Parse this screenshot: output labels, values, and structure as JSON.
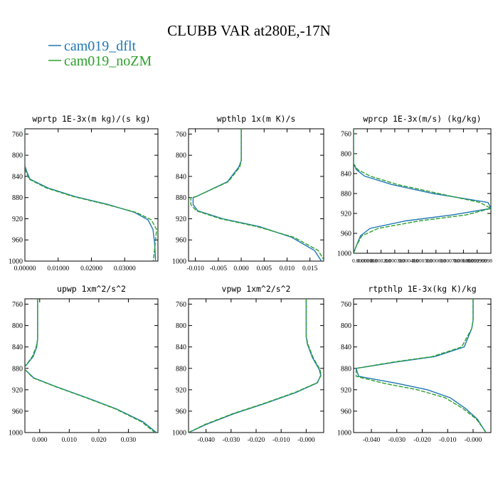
{
  "title": "CLUBB VAR at280E,-17N",
  "legend": {
    "placement": "top-left",
    "entries": [
      {
        "name": "cam019_dflt",
        "color": "#1f77b4"
      },
      {
        "name": "cam019_noZM",
        "color": "#2ca02c"
      }
    ]
  },
  "chart_data": [
    {
      "type": "line",
      "title": "wprtp  1E-3x(m kg)/(s kg)",
      "xlim": [
        0.0,
        0.04
      ],
      "ylim": [
        1000,
        750
      ],
      "xticks": [
        0.0,
        0.01,
        0.02,
        0.03
      ],
      "xtick_labels": [
        "0.00000",
        "0.01000",
        "0.02000",
        "0.03000"
      ],
      "yticks": [
        760,
        800,
        840,
        880,
        920,
        960,
        1000
      ],
      "ytick_labels": [
        "760",
        "800",
        "840",
        "880",
        "920",
        "960",
        "1000"
      ],
      "grid": false,
      "series": [
        {
          "name": "cam019_dflt",
          "x": [
            0.0,
            0.0,
            0.0005,
            0.0015,
            0.007,
            0.015,
            0.025,
            0.033,
            0.037,
            0.0385,
            0.039,
            0.0393
          ],
          "y": [
            750,
            820,
            830,
            845,
            862,
            878,
            893,
            908,
            922,
            940,
            965,
            1000
          ]
        },
        {
          "name": "cam019_noZM",
          "x": [
            0.0,
            0.0,
            0.0003,
            0.0012,
            0.0065,
            0.0145,
            0.0245,
            0.0335,
            0.038,
            0.0396,
            0.0392,
            0.0386
          ],
          "y": [
            750,
            820,
            830,
            845,
            862,
            878,
            893,
            908,
            922,
            940,
            965,
            1000
          ]
        }
      ]
    },
    {
      "type": "line",
      "title": "wpthlp  1x(m K)/s",
      "xlim": [
        -0.0115,
        0.018
      ],
      "ylim": [
        1000,
        750
      ],
      "xticks": [
        -0.01,
        -0.005,
        0.0,
        0.005,
        0.01,
        0.015
      ],
      "xtick_labels": [
        "-0.010",
        "-0.005",
        "0.000",
        "0.005",
        "0.010",
        "0.015"
      ],
      "yticks": [
        760,
        800,
        840,
        880,
        920,
        960,
        1000
      ],
      "ytick_labels": [
        "760",
        "800",
        "840",
        "880",
        "920",
        "960",
        "1000"
      ],
      "grid": false,
      "series": [
        {
          "name": "cam019_dflt",
          "x": [
            0.0,
            0.0,
            -0.0005,
            -0.003,
            -0.0098,
            -0.0105,
            -0.0105,
            -0.0095,
            -0.004,
            0.004,
            0.011,
            0.016,
            0.0175
          ],
          "y": [
            750,
            810,
            822,
            850,
            878,
            880,
            893,
            905,
            920,
            935,
            955,
            980,
            1000
          ]
        },
        {
          "name": "cam019_noZM",
          "x": [
            0.0,
            0.0,
            -0.0003,
            -0.0028,
            -0.0098,
            -0.011,
            -0.011,
            -0.0098,
            -0.0045,
            0.0035,
            0.0115,
            0.0168,
            0.0182
          ],
          "y": [
            750,
            810,
            822,
            850,
            878,
            880,
            893,
            905,
            920,
            935,
            955,
            980,
            1000
          ]
        }
      ]
    },
    {
      "type": "line",
      "title": "wprcp  1E-3x(m/s) (kg/kg)",
      "xlim": [
        0.0,
        0.0009999998
      ],
      "ylim": [
        1000,
        750
      ],
      "xticks": [
        0.0,
        0.0001,
        0.0002,
        0.0003,
        0.0004,
        0.0005,
        0.0006,
        0.0007,
        0.0008,
        0.0009,
        0.0009999998
      ],
      "xtick_labels": [
        "0.000000",
        "0.000100",
        "0.000200",
        "0.000300",
        "0.000400",
        "0.000500",
        "0.000600",
        "0.000700",
        "0.000800",
        "0.000900",
        "0.0009999998"
      ],
      "yticks": [
        760,
        800,
        840,
        880,
        920,
        960,
        1000
      ],
      "ytick_labels": [
        "760",
        "800",
        "840",
        "880",
        "920",
        "960",
        "1000"
      ],
      "grid": false,
      "series": [
        {
          "name": "cam019_dflt",
          "x": [
            0.0,
            0.0,
            2e-05,
            8e-05,
            0.00028,
            0.00058,
            0.00098,
            0.001,
            0.00072,
            0.00038,
            0.00012,
            5e-05,
            2e-05,
            0.0
          ],
          "y": [
            750,
            820,
            832,
            845,
            862,
            880,
            898,
            910,
            923,
            935,
            950,
            965,
            985,
            1000
          ]
        },
        {
          "name": "cam019_noZM",
          "x": [
            0.0,
            0.0,
            3e-05,
            0.00012,
            0.00032,
            0.00062,
            0.00092,
            0.001,
            0.00082,
            0.00048,
            0.00018,
            6e-05,
            2e-05,
            0.0
          ],
          "y": [
            750,
            820,
            832,
            845,
            862,
            880,
            898,
            910,
            923,
            935,
            950,
            965,
            985,
            1000
          ]
        }
      ]
    },
    {
      "type": "line",
      "title": "upwp  1xm^2/s^2",
      "xlim": [
        -0.005,
        0.04
      ],
      "ylim": [
        1000,
        750
      ],
      "xticks": [
        0.0,
        0.01,
        0.02,
        0.03
      ],
      "xtick_labels": [
        "0.000",
        "0.010",
        "0.020",
        "0.030"
      ],
      "yticks": [
        760,
        800,
        840,
        880,
        920,
        960,
        1000
      ],
      "ytick_labels": [
        "760",
        "800",
        "840",
        "880",
        "920",
        "960",
        "1000"
      ],
      "grid": false,
      "series": [
        {
          "name": "cam019_dflt",
          "x": [
            -0.0007,
            -0.0007,
            -0.001,
            -0.0022,
            -0.005,
            -0.005,
            -0.002,
            0.006,
            0.016,
            0.026,
            0.035,
            0.0395
          ],
          "y": [
            750,
            825,
            840,
            858,
            877,
            882,
            898,
            915,
            935,
            956,
            980,
            1000
          ]
        },
        {
          "name": "cam019_noZM",
          "x": [
            -0.0007,
            -0.0007,
            -0.0012,
            -0.0025,
            -0.005,
            -0.005,
            -0.0022,
            0.0057,
            0.0157,
            0.0257,
            0.0345,
            0.039
          ],
          "y": [
            750,
            825,
            840,
            858,
            877,
            882,
            898,
            915,
            935,
            956,
            980,
            1000
          ]
        }
      ]
    },
    {
      "type": "line",
      "title": "vpwp  1xm^2/s^2",
      "xlim": [
        -0.047,
        0.007
      ],
      "ylim": [
        1000,
        750
      ],
      "xticks": [
        -0.04,
        -0.03,
        -0.02,
        -0.01,
        0.0
      ],
      "xtick_labels": [
        "-0.040",
        "-0.030",
        "-0.020",
        "-0.010",
        "-0.000"
      ],
      "yticks": [
        760,
        800,
        840,
        880,
        920,
        960,
        1000
      ],
      "ytick_labels": [
        "760",
        "800",
        "840",
        "880",
        "920",
        "960",
        "1000"
      ],
      "grid": false,
      "series": [
        {
          "name": "cam019_dflt",
          "x": [
            0.0,
            0.0,
            0.0005,
            0.0025,
            0.0052,
            0.0058,
            0.0045,
            -0.004,
            -0.016,
            -0.029,
            -0.04,
            -0.047
          ],
          "y": [
            750,
            820,
            835,
            860,
            882,
            893,
            907,
            925,
            945,
            965,
            985,
            1000
          ]
        },
        {
          "name": "cam019_noZM",
          "x": [
            0.0,
            0.0,
            0.0007,
            0.0028,
            0.0055,
            0.006,
            0.0043,
            -0.0045,
            -0.0165,
            -0.0295,
            -0.0405,
            -0.047
          ],
          "y": [
            750,
            820,
            835,
            860,
            882,
            893,
            907,
            925,
            945,
            965,
            985,
            1000
          ]
        }
      ]
    },
    {
      "type": "line",
      "title": "rtpthlp  1E-3x(kg K)/kg",
      "xlim": [
        -0.047,
        0.007
      ],
      "ylim": [
        1000,
        750
      ],
      "xticks": [
        -0.04,
        -0.03,
        -0.02,
        -0.01,
        0.0
      ],
      "xtick_labels": [
        "-0.040",
        "-0.030",
        "-0.020",
        "-0.010",
        "-0.000"
      ],
      "yticks": [
        760,
        800,
        840,
        880,
        920,
        960,
        1000
      ],
      "ytick_labels": [
        "760",
        "800",
        "840",
        "880",
        "920",
        "960",
        "1000"
      ],
      "grid": false,
      "series": [
        {
          "name": "cam019_dflt",
          "x": [
            0.0,
            0.0,
            -0.0005,
            -0.0035,
            -0.015,
            -0.03,
            -0.046,
            -0.045,
            -0.03,
            -0.018,
            -0.009,
            -0.003,
            0.0017,
            0.005
          ],
          "y": [
            750,
            790,
            805,
            840,
            858,
            868,
            880,
            895,
            908,
            920,
            935,
            955,
            975,
            1000
          ]
        },
        {
          "name": "cam019_noZM",
          "x": [
            0.0,
            0.0,
            -0.0005,
            -0.0045,
            -0.016,
            -0.031,
            -0.046,
            -0.046,
            -0.035,
            -0.022,
            -0.011,
            -0.004,
            0.0013,
            0.0052
          ],
          "y": [
            750,
            790,
            805,
            840,
            858,
            868,
            880,
            895,
            908,
            920,
            935,
            955,
            975,
            1000
          ]
        }
      ]
    }
  ]
}
